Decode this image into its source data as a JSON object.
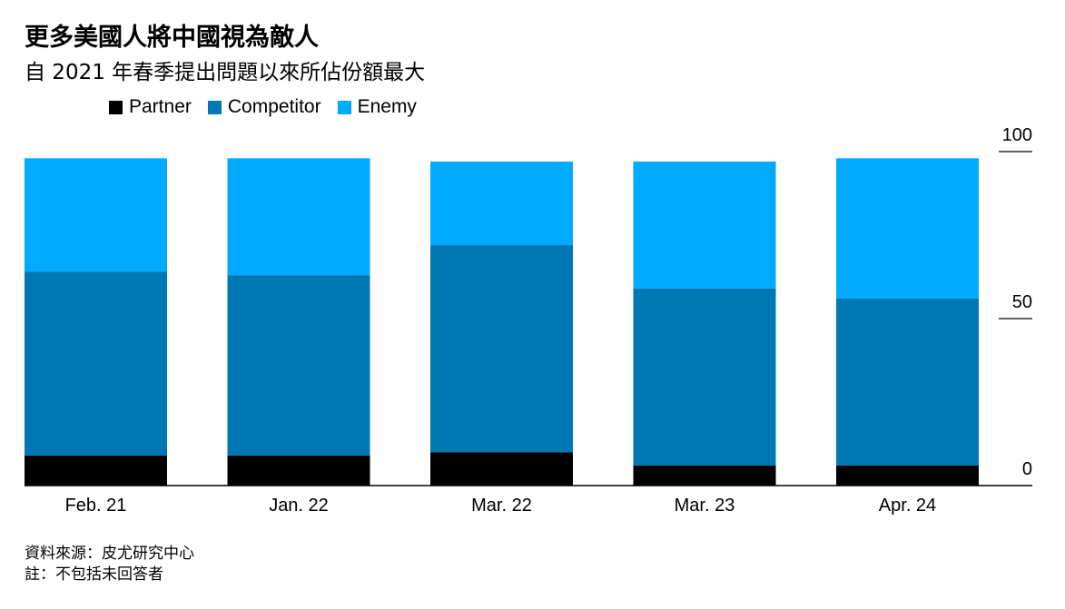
{
  "title": "更多美國人將中國視為敵人",
  "subtitle": "自 2021 年春季提出問題以來所佔份額最大",
  "footer": {
    "source": "資料來源：皮尤研究中心",
    "note": "註：不包括未回答者"
  },
  "chart_data": {
    "type": "bar",
    "stacked": true,
    "categories": [
      "Feb. 21",
      "Jan. 22",
      "Mar. 22",
      "Mar. 23",
      "Apr. 24"
    ],
    "series": [
      {
        "name": "Partner",
        "color": "#000000",
        "values": [
          9,
          9,
          10,
          6,
          6
        ]
      },
      {
        "name": "Competitor",
        "color": "#0077b5",
        "values": [
          55,
          54,
          62,
          53,
          50
        ]
      },
      {
        "name": "Enemy",
        "color": "#00aaff",
        "values": [
          34,
          35,
          25,
          38,
          42
        ]
      }
    ],
    "ylim": [
      0,
      100
    ],
    "yticks": [
      0,
      50,
      100
    ],
    "ytick_labels": [
      "0",
      "50",
      "100"
    ],
    "legend_position": "top-left",
    "axis_position": "right",
    "grid": false
  }
}
